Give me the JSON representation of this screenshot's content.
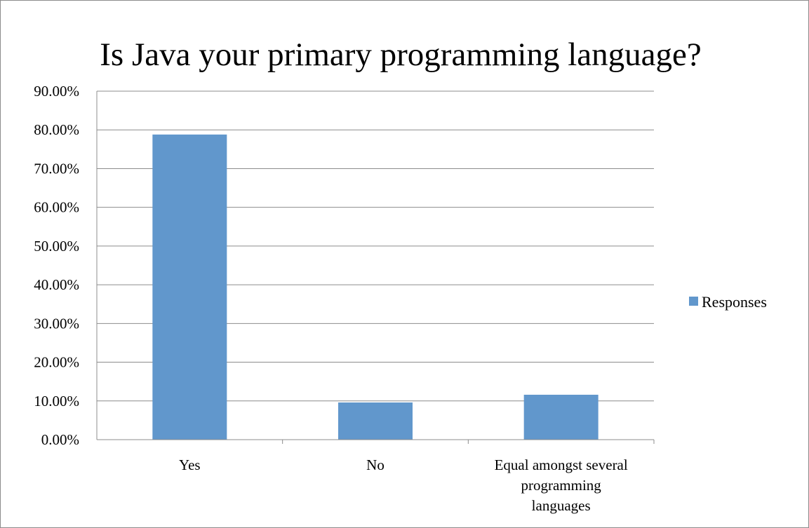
{
  "chart_data": {
    "type": "bar",
    "title": "Is Java your primary programming language?",
    "categories": [
      "Yes",
      "No",
      "Equal amongst several programming languages"
    ],
    "category_lines": [
      [
        "Yes"
      ],
      [
        "No"
      ],
      [
        "Equal amongst several",
        "programming",
        "languages"
      ]
    ],
    "series": [
      {
        "name": "Responses",
        "values": [
          78.8,
          9.6,
          11.6
        ],
        "color": "#6197cc"
      }
    ],
    "ylim": [
      0,
      90
    ],
    "yticks": [
      0,
      10,
      20,
      30,
      40,
      50,
      60,
      70,
      80,
      90
    ],
    "ytick_labels": [
      "0.00%",
      "10.00%",
      "20.00%",
      "30.00%",
      "40.00%",
      "50.00%",
      "60.00%",
      "70.00%",
      "80.00%",
      "90.00%"
    ],
    "xlabel": "",
    "ylabel": "",
    "grid": true,
    "legend_position": "right"
  }
}
